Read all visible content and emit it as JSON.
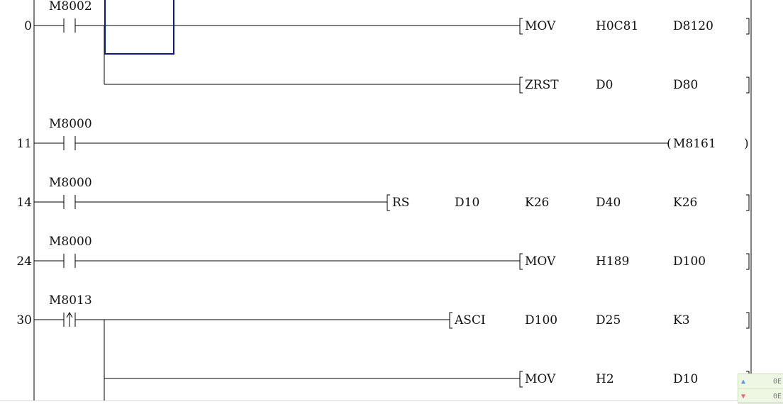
{
  "colors": {
    "cursor": "#0a1a80",
    "line": "#000000",
    "widget_bg": "#eef7e4"
  },
  "rungs": [
    {
      "step": "0",
      "contact": {
        "label": "M8002",
        "type": "normally-open"
      },
      "output": {
        "kind": "instruction",
        "opcode": "MOV",
        "operands": [
          "H0C81",
          "D8120"
        ]
      }
    },
    {
      "step": "",
      "contact": null,
      "output": {
        "kind": "instruction",
        "opcode": "ZRST",
        "operands": [
          "D0",
          "D80"
        ]
      }
    },
    {
      "step": "11",
      "contact": {
        "label": "M8000",
        "type": "normally-open"
      },
      "output": {
        "kind": "coil",
        "operands": [
          "M8161"
        ]
      }
    },
    {
      "step": "14",
      "contact": {
        "label": "M8000",
        "type": "normally-open"
      },
      "output": {
        "kind": "instruction",
        "opcode": "RS",
        "operands": [
          "D10",
          "K26",
          "D40",
          "K26"
        ]
      }
    },
    {
      "step": "24",
      "contact": {
        "label": "M8000",
        "type": "normally-open"
      },
      "output": {
        "kind": "instruction",
        "opcode": "MOV",
        "operands": [
          "H189",
          "D100"
        ]
      }
    },
    {
      "step": "30",
      "contact": {
        "label": "M8013",
        "type": "rising-edge"
      },
      "output": {
        "kind": "instruction",
        "opcode": "ASCI",
        "operands": [
          "D100",
          "D25",
          "K3"
        ]
      }
    },
    {
      "step": "",
      "contact": null,
      "output": {
        "kind": "instruction",
        "opcode": "MOV",
        "operands": [
          "H2",
          "D10"
        ]
      }
    }
  ],
  "widget": {
    "rows": [
      {
        "icon": "arrow-up-icon",
        "value": "0E"
      },
      {
        "icon": "arrow-down-icon",
        "value": "0E"
      }
    ]
  }
}
